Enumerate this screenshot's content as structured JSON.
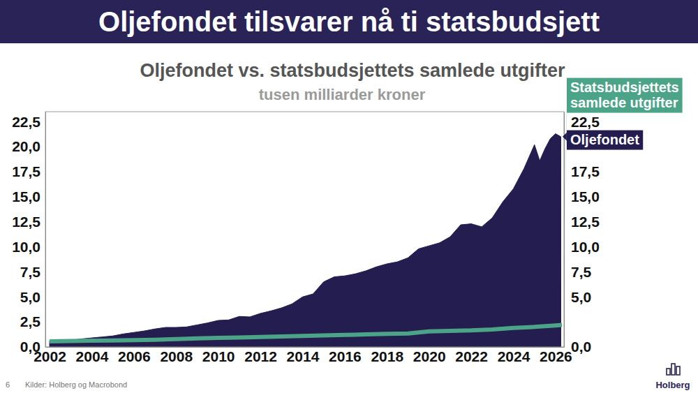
{
  "chart_data": {
    "type": "area",
    "title": "Oljefondet tilsvarer nå ti statsbudsjett",
    "subtitle": "Oljefondet vs. statsbudsjettets samlede utgifter",
    "unit": "tusen milliarder kroner",
    "source": "Kilder: Holberg og Macrobond",
    "page_number": "6",
    "logo": "Holberg",
    "xlim": [
      2001.8,
      2026.4
    ],
    "xticks": [
      2002,
      2004,
      2006,
      2008,
      2010,
      2012,
      2014,
      2016,
      2018,
      2020,
      2022,
      2024,
      2026
    ],
    "ylim": [
      0,
      23.5
    ],
    "yticks": [
      {
        "value": 0,
        "label": "0,0"
      },
      {
        "value": 2.5,
        "label": "2,5"
      },
      {
        "value": 5,
        "label": "5,0"
      },
      {
        "value": 7.5,
        "label": "7,5"
      },
      {
        "value": 10,
        "label": "10,0"
      },
      {
        "value": 12.5,
        "label": "12,5"
      },
      {
        "value": 15,
        "label": "15,0"
      },
      {
        "value": 17.5,
        "label": "17,5"
      },
      {
        "value": 20,
        "label": "20,0"
      },
      {
        "value": 22.5,
        "label": "22,5"
      }
    ],
    "y2lim": [
      0,
      23.5
    ],
    "y2ticks": [
      {
        "value": 0,
        "label": "0,0"
      },
      {
        "value": 5,
        "label": "5,0"
      },
      {
        "value": 7.5,
        "label": "7,5"
      },
      {
        "value": 10,
        "label": "10,0"
      },
      {
        "value": 12.5,
        "label": "12,5"
      },
      {
        "value": 15,
        "label": "15,0"
      },
      {
        "value": 17.5,
        "label": "17,5"
      },
      {
        "value": 22.5,
        "label": "22,5"
      }
    ],
    "grid": false,
    "legend": "right",
    "series": [
      {
        "name": "Oljefondet",
        "type": "area",
        "color": "#241d4f",
        "x": [
          2002,
          2002.5,
          2003,
          2003.5,
          2004,
          2004.5,
          2005,
          2005.5,
          2006,
          2006.5,
          2007,
          2007.5,
          2008,
          2008.5,
          2009,
          2009.5,
          2010,
          2010.5,
          2011,
          2011.5,
          2012,
          2012.5,
          2013,
          2013.5,
          2014,
          2014.5,
          2015,
          2015.5,
          2016,
          2016.5,
          2017,
          2017.5,
          2018,
          2018.5,
          2019,
          2019.5,
          2020,
          2020.5,
          2021,
          2021.5,
          2022,
          2022.5,
          2023,
          2023.5,
          2024,
          2024.5,
          2025,
          2025.25,
          2025.5,
          2025.75,
          2026,
          2026.25
        ],
        "values": [
          0.6,
          0.62,
          0.65,
          0.8,
          0.9,
          1.0,
          1.1,
          1.3,
          1.45,
          1.6,
          1.8,
          1.95,
          1.95,
          2.0,
          2.2,
          2.4,
          2.65,
          2.7,
          3.05,
          3.0,
          3.35,
          3.6,
          3.9,
          4.3,
          5.0,
          5.3,
          6.5,
          7.0,
          7.1,
          7.3,
          7.6,
          8.0,
          8.3,
          8.5,
          8.9,
          9.8,
          10.1,
          10.4,
          11.0,
          12.2,
          12.3,
          12.0,
          12.9,
          14.5,
          15.8,
          17.8,
          20.2,
          18.6,
          19.8,
          20.8,
          21.3,
          21.0
        ]
      },
      {
        "name": "Statsbudsjettets samlede utgifter",
        "type": "line",
        "color": "#4ba487",
        "x": [
          2002,
          2003,
          2004,
          2005,
          2006,
          2007,
          2008,
          2009,
          2010,
          2011,
          2012,
          2013,
          2014,
          2015,
          2016,
          2017,
          2018,
          2019,
          2020,
          2021,
          2022,
          2023,
          2024,
          2025,
          2026,
          2026.3
        ],
        "values": [
          0.55,
          0.6,
          0.62,
          0.65,
          0.68,
          0.72,
          0.78,
          0.85,
          0.9,
          0.95,
          1.0,
          1.05,
          1.1,
          1.15,
          1.2,
          1.25,
          1.3,
          1.35,
          1.55,
          1.6,
          1.65,
          1.75,
          1.9,
          2.0,
          2.15,
          2.2
        ]
      }
    ]
  }
}
